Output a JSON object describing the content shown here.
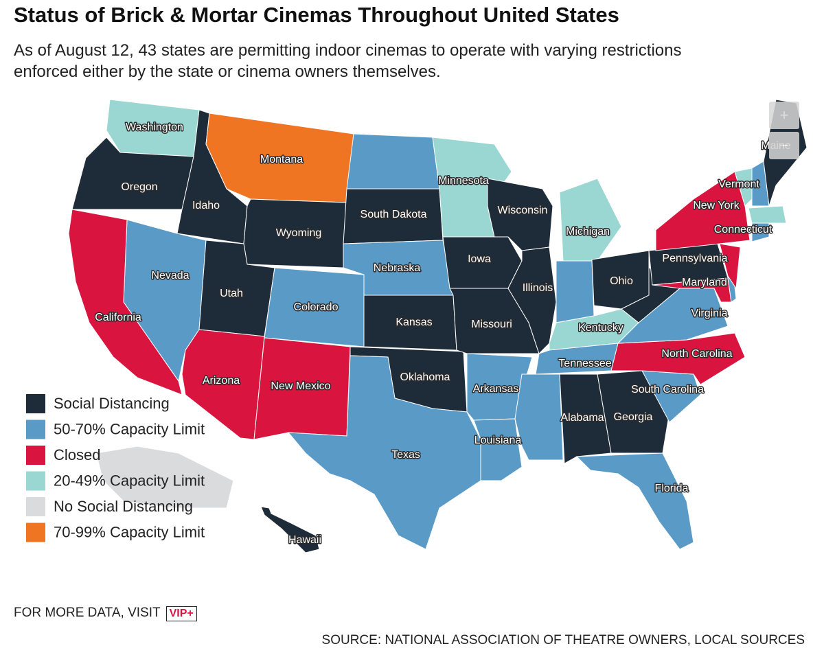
{
  "header": {
    "title": "Status of Brick & Mortar Cinemas Throughout United States",
    "subtitle": "As of August 12, 43 states are permitting indoor cinemas to operate with varying restrictions enforced either by the state or cinema owners themselves."
  },
  "legend": [
    {
      "label": "Social Distancing",
      "color": "#1e2b38"
    },
    {
      "label": "50-70% Capacity Limit",
      "color": "#5a9ac6"
    },
    {
      "label": "Closed",
      "color": "#d9153f"
    },
    {
      "label": "20-49% Capacity Limit",
      "color": "#9ad7d2"
    },
    {
      "label": "No Social Distancing",
      "color": "#d9dbdd"
    },
    {
      "label": "70-99% Capacity Limit",
      "color": "#f07522"
    }
  ],
  "states": [
    {
      "label": "Washington",
      "status": "20-49% Capacity Limit"
    },
    {
      "label": "Oregon",
      "status": "Social Distancing"
    },
    {
      "label": "Idaho",
      "status": "Social Distancing"
    },
    {
      "label": "Montana",
      "status": "70-99% Capacity Limit"
    },
    {
      "label": "Wyoming",
      "status": "Social Distancing"
    },
    {
      "label": "Nevada",
      "status": "50-70% Capacity Limit"
    },
    {
      "label": "California",
      "status": "Closed"
    },
    {
      "label": "Utah",
      "status": "Social Distancing"
    },
    {
      "label": "Arizona",
      "status": "Closed"
    },
    {
      "label": "Colorado",
      "status": "50-70% Capacity Limit"
    },
    {
      "label": "New Mexico",
      "status": "Closed"
    },
    {
      "label": null,
      "status": "50-70% Capacity Limit"
    },
    {
      "label": "South Dakota",
      "status": "Social Distancing"
    },
    {
      "label": "Nebraska",
      "status": "50-70% Capacity Limit"
    },
    {
      "label": "Kansas",
      "status": "Social Distancing"
    },
    {
      "label": "Oklahoma",
      "status": "Social Distancing"
    },
    {
      "label": "Texas",
      "status": "50-70% Capacity Limit"
    },
    {
      "label": "Minnesota",
      "status": "20-49% Capacity Limit"
    },
    {
      "label": "Iowa",
      "status": "Social Distancing"
    },
    {
      "label": "Missouri",
      "status": "Social Distancing"
    },
    {
      "label": "Arkansas",
      "status": "50-70% Capacity Limit"
    },
    {
      "label": "Louisiana",
      "status": "50-70% Capacity Limit"
    },
    {
      "label": "Wisconsin",
      "status": "Social Distancing"
    },
    {
      "label": "Illinois",
      "status": "Social Distancing"
    },
    {
      "label": "Michigan",
      "status": "20-49% Capacity Limit"
    },
    {
      "label": null,
      "status": "50-70% Capacity Limit"
    },
    {
      "label": "Ohio",
      "status": "Social Distancing"
    },
    {
      "label": "Kentucky",
      "status": "20-49% Capacity Limit"
    },
    {
      "label": "Tennessee",
      "status": "50-70% Capacity Limit"
    },
    {
      "label": null,
      "status": "50-70% Capacity Limit"
    },
    {
      "label": "Alabama",
      "status": "Social Distancing"
    },
    {
      "label": "Georgia",
      "status": "Social Distancing"
    },
    {
      "label": "Florida",
      "status": "50-70% Capacity Limit"
    },
    {
      "label": "South Carolina",
      "status": "50-70% Capacity Limit"
    },
    {
      "label": "North Carolina",
      "status": "Closed"
    },
    {
      "label": "Virginia",
      "status": "50-70% Capacity Limit"
    },
    {
      "label": null,
      "status": "Social Distancing"
    },
    {
      "label": "Pennsylvania",
      "status": "Social Distancing"
    },
    {
      "label": "Maryland",
      "status": "Closed"
    },
    {
      "label": null,
      "status": "50-70% Capacity Limit"
    },
    {
      "label": null,
      "status": "Closed"
    },
    {
      "label": "New York",
      "status": "Closed"
    },
    {
      "label": "Vermont",
      "status": "20-49% Capacity Limit"
    },
    {
      "label": null,
      "status": "50-70% Capacity Limit"
    },
    {
      "label": null,
      "status": "20-49% Capacity Limit"
    },
    {
      "label": "Connecticut",
      "status": "50-70% Capacity Limit"
    },
    {
      "label": "Maine",
      "status": "Social Distancing"
    },
    {
      "label": null,
      "status": "No Social Distancing"
    },
    {
      "label": "Hawaii",
      "status": "Social Distancing"
    }
  ],
  "controls": {
    "zoom_in": "+",
    "zoom_out": "−"
  },
  "footer": {
    "more": "FOR MORE DATA, VISIT",
    "vip": "VIP+",
    "source": "SOURCE: NATIONAL ASSOCIATION OF THEATRE OWNERS, LOCAL SOURCES"
  }
}
